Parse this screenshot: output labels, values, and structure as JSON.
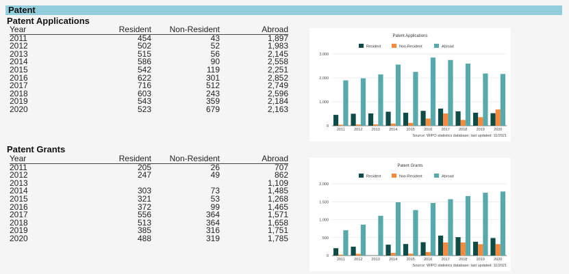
{
  "header": {
    "title": "Patent"
  },
  "applications": {
    "title": "Patent Applications",
    "columns": [
      "Year",
      "Resident",
      "Non-Resident",
      "Abroad"
    ],
    "rows": [
      [
        "2011",
        "454",
        "43",
        "1,897"
      ],
      [
        "2012",
        "502",
        "52",
        "1,983"
      ],
      [
        "2013",
        "515",
        "56",
        "2,145"
      ],
      [
        "2014",
        "586",
        "90",
        "2,558"
      ],
      [
        "2015",
        "542",
        "119",
        "2,251"
      ],
      [
        "2016",
        "622",
        "301",
        "2,852"
      ],
      [
        "2017",
        "716",
        "512",
        "2,749"
      ],
      [
        "2018",
        "603",
        "243",
        "2,596"
      ],
      [
        "2019",
        "543",
        "359",
        "2,184"
      ],
      [
        "2020",
        "523",
        "679",
        "2,163"
      ]
    ]
  },
  "grants": {
    "title": "Patent Grants",
    "columns": [
      "Year",
      "Resident",
      "Non-Resident",
      "Abroad"
    ],
    "rows": [
      [
        "2011",
        "205",
        "26",
        "707"
      ],
      [
        "2012",
        "247",
        "49",
        "862"
      ],
      [
        "2013",
        "",
        "",
        "1,109"
      ],
      [
        "2014",
        "303",
        "73",
        "1,485"
      ],
      [
        "2015",
        "321",
        "53",
        "1,268"
      ],
      [
        "2016",
        "372",
        "99",
        "1,465"
      ],
      [
        "2017",
        "556",
        "364",
        "1,571"
      ],
      [
        "2018",
        "513",
        "364",
        "1,658"
      ],
      [
        "2019",
        "385",
        "316",
        "1,751"
      ],
      [
        "2020",
        "488",
        "319",
        "1,785"
      ]
    ]
  },
  "chart_data": [
    {
      "type": "bar",
      "title": "Patent Applications",
      "categories": [
        "2011",
        "2012",
        "2013",
        "2014",
        "2015",
        "2016",
        "2017",
        "2018",
        "2019",
        "2020"
      ],
      "series": [
        {
          "name": "Resident",
          "color": "#0f4c47",
          "values": [
            454,
            502,
            515,
            586,
            542,
            622,
            716,
            603,
            543,
            523
          ]
        },
        {
          "name": "Non-Resident",
          "color": "#f58a3c",
          "values": [
            43,
            52,
            56,
            90,
            119,
            301,
            512,
            243,
            359,
            679
          ]
        },
        {
          "name": "Abroad",
          "color": "#57a9ab",
          "values": [
            1897,
            1983,
            2145,
            2558,
            2251,
            2852,
            2749,
            2596,
            2184,
            2163
          ]
        }
      ],
      "yticks": [
        0,
        1000,
        2000,
        3000
      ],
      "ytick_labels": [
        "0",
        "1,000",
        "2,000",
        "3,000"
      ],
      "ylim": [
        0,
        3000
      ],
      "source": "Source: WIPO statistics database; last updated: 11/2021",
      "legend": "top"
    },
    {
      "type": "bar",
      "title": "Patent Grants",
      "categories": [
        "2011",
        "2012",
        "2013",
        "2014",
        "2015",
        "2016",
        "2017",
        "2018",
        "2019",
        "2020"
      ],
      "series": [
        {
          "name": "Resident",
          "color": "#0f4c47",
          "values": [
            205,
            247,
            0,
            303,
            321,
            372,
            556,
            513,
            385,
            488
          ]
        },
        {
          "name": "Non-Resident",
          "color": "#f58a3c",
          "values": [
            26,
            49,
            0,
            73,
            53,
            99,
            364,
            364,
            316,
            319
          ]
        },
        {
          "name": "Abroad",
          "color": "#57a9ab",
          "values": [
            707,
            862,
            1109,
            1485,
            1268,
            1465,
            1571,
            1658,
            1751,
            1785
          ]
        }
      ],
      "yticks": [
        0,
        500,
        1000,
        1500,
        2000
      ],
      "ytick_labels": [
        "0",
        "500",
        "1,000",
        "1,500",
        "2,000"
      ],
      "ylim": [
        0,
        2000
      ],
      "source": "Source: WIPO statistics database; last updated: 11/2021",
      "legend": "top"
    }
  ]
}
